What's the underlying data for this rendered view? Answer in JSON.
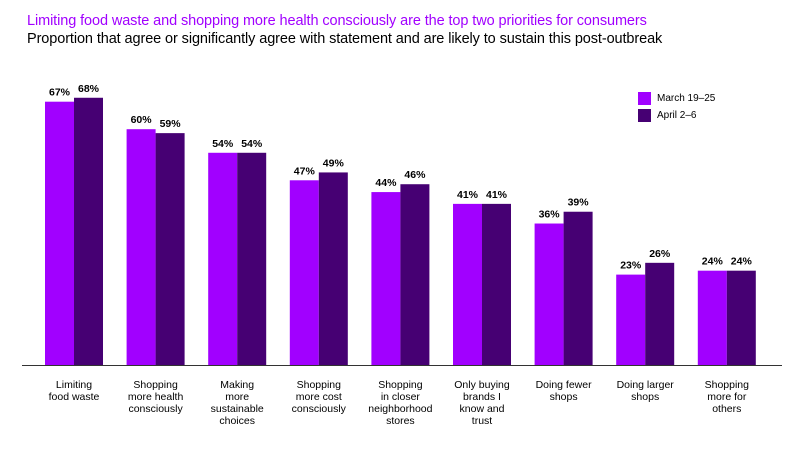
{
  "chart_data": {
    "type": "bar",
    "title": "Limiting food waste and shopping more health consciously are the top two priorities for consumers",
    "subtitle": "Proportion that agree or significantly agree with statement and are likely to sustain this post-outbreak",
    "xlabel": "",
    "ylabel": "",
    "ylim": [
      0,
      70
    ],
    "grid": false,
    "legend_position": "top-right",
    "categories": [
      "Limiting\nfood waste",
      "Shopping\nmore health\nconsciously",
      "Making\nmore\nsustainable\nchoices",
      "Shopping\nmore cost\nconsciously",
      "Shopping\nin closer\nneighborhood\nstores",
      "Only buying\nbrands I\nknow and\ntrust",
      "Doing fewer\nshops",
      "Doing larger\nshops",
      "Shopping\nmore for\nothers"
    ],
    "series": [
      {
        "name": "March 19–25",
        "color": "#a100ff",
        "values": [
          67,
          60,
          54,
          47,
          44,
          41,
          36,
          23,
          24
        ]
      },
      {
        "name": "April 2–6",
        "color": "#460073",
        "values": [
          68,
          59,
          54,
          49,
          46,
          41,
          39,
          26,
          24
        ]
      }
    ],
    "value_suffix": "%"
  }
}
